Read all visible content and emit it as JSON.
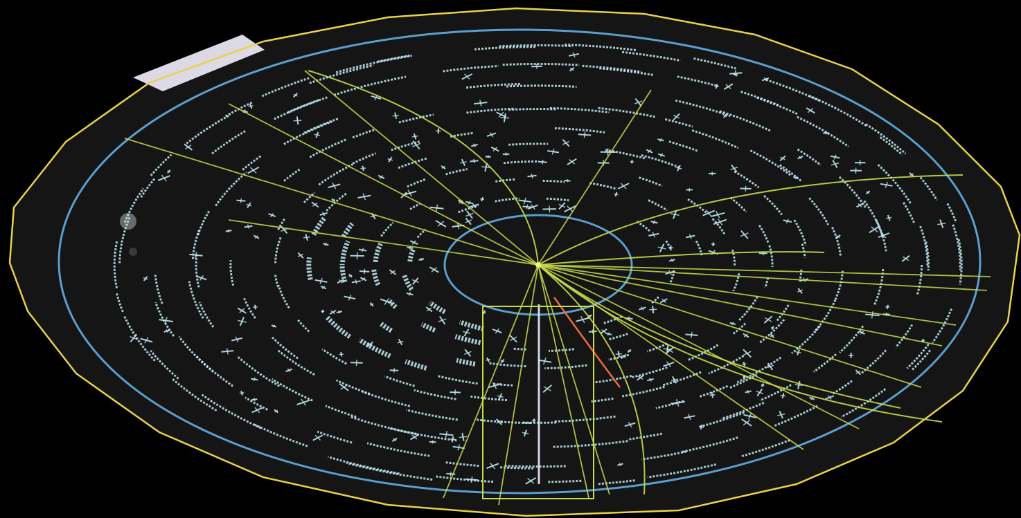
{
  "image": {
    "kind": "particle-detector-event-display",
    "view": "perspective end-view",
    "background_color": "#000000",
    "colors": {
      "detector_floor": "#151515",
      "outer_boundary": "#e8d24a",
      "calorimeter_ring": "#5a9fd0",
      "inner_ring": "#5a9fd0",
      "hits": "#bfe8f0",
      "tracks": "#c8dc4a",
      "highlight_track": "#f06a3a",
      "side_panel": "#e8e4f0",
      "blob": "#6a6a6a"
    },
    "elements": [
      "detector-floor",
      "outer-yellow-boundary",
      "outer-blue-ring",
      "inner-blue-ring",
      "concentric-hit-arcs",
      "scattered-hit-crosses",
      "yellow-green-tracks",
      "vertex",
      "yellow-rectangular-frame",
      "side-panel"
    ]
  }
}
